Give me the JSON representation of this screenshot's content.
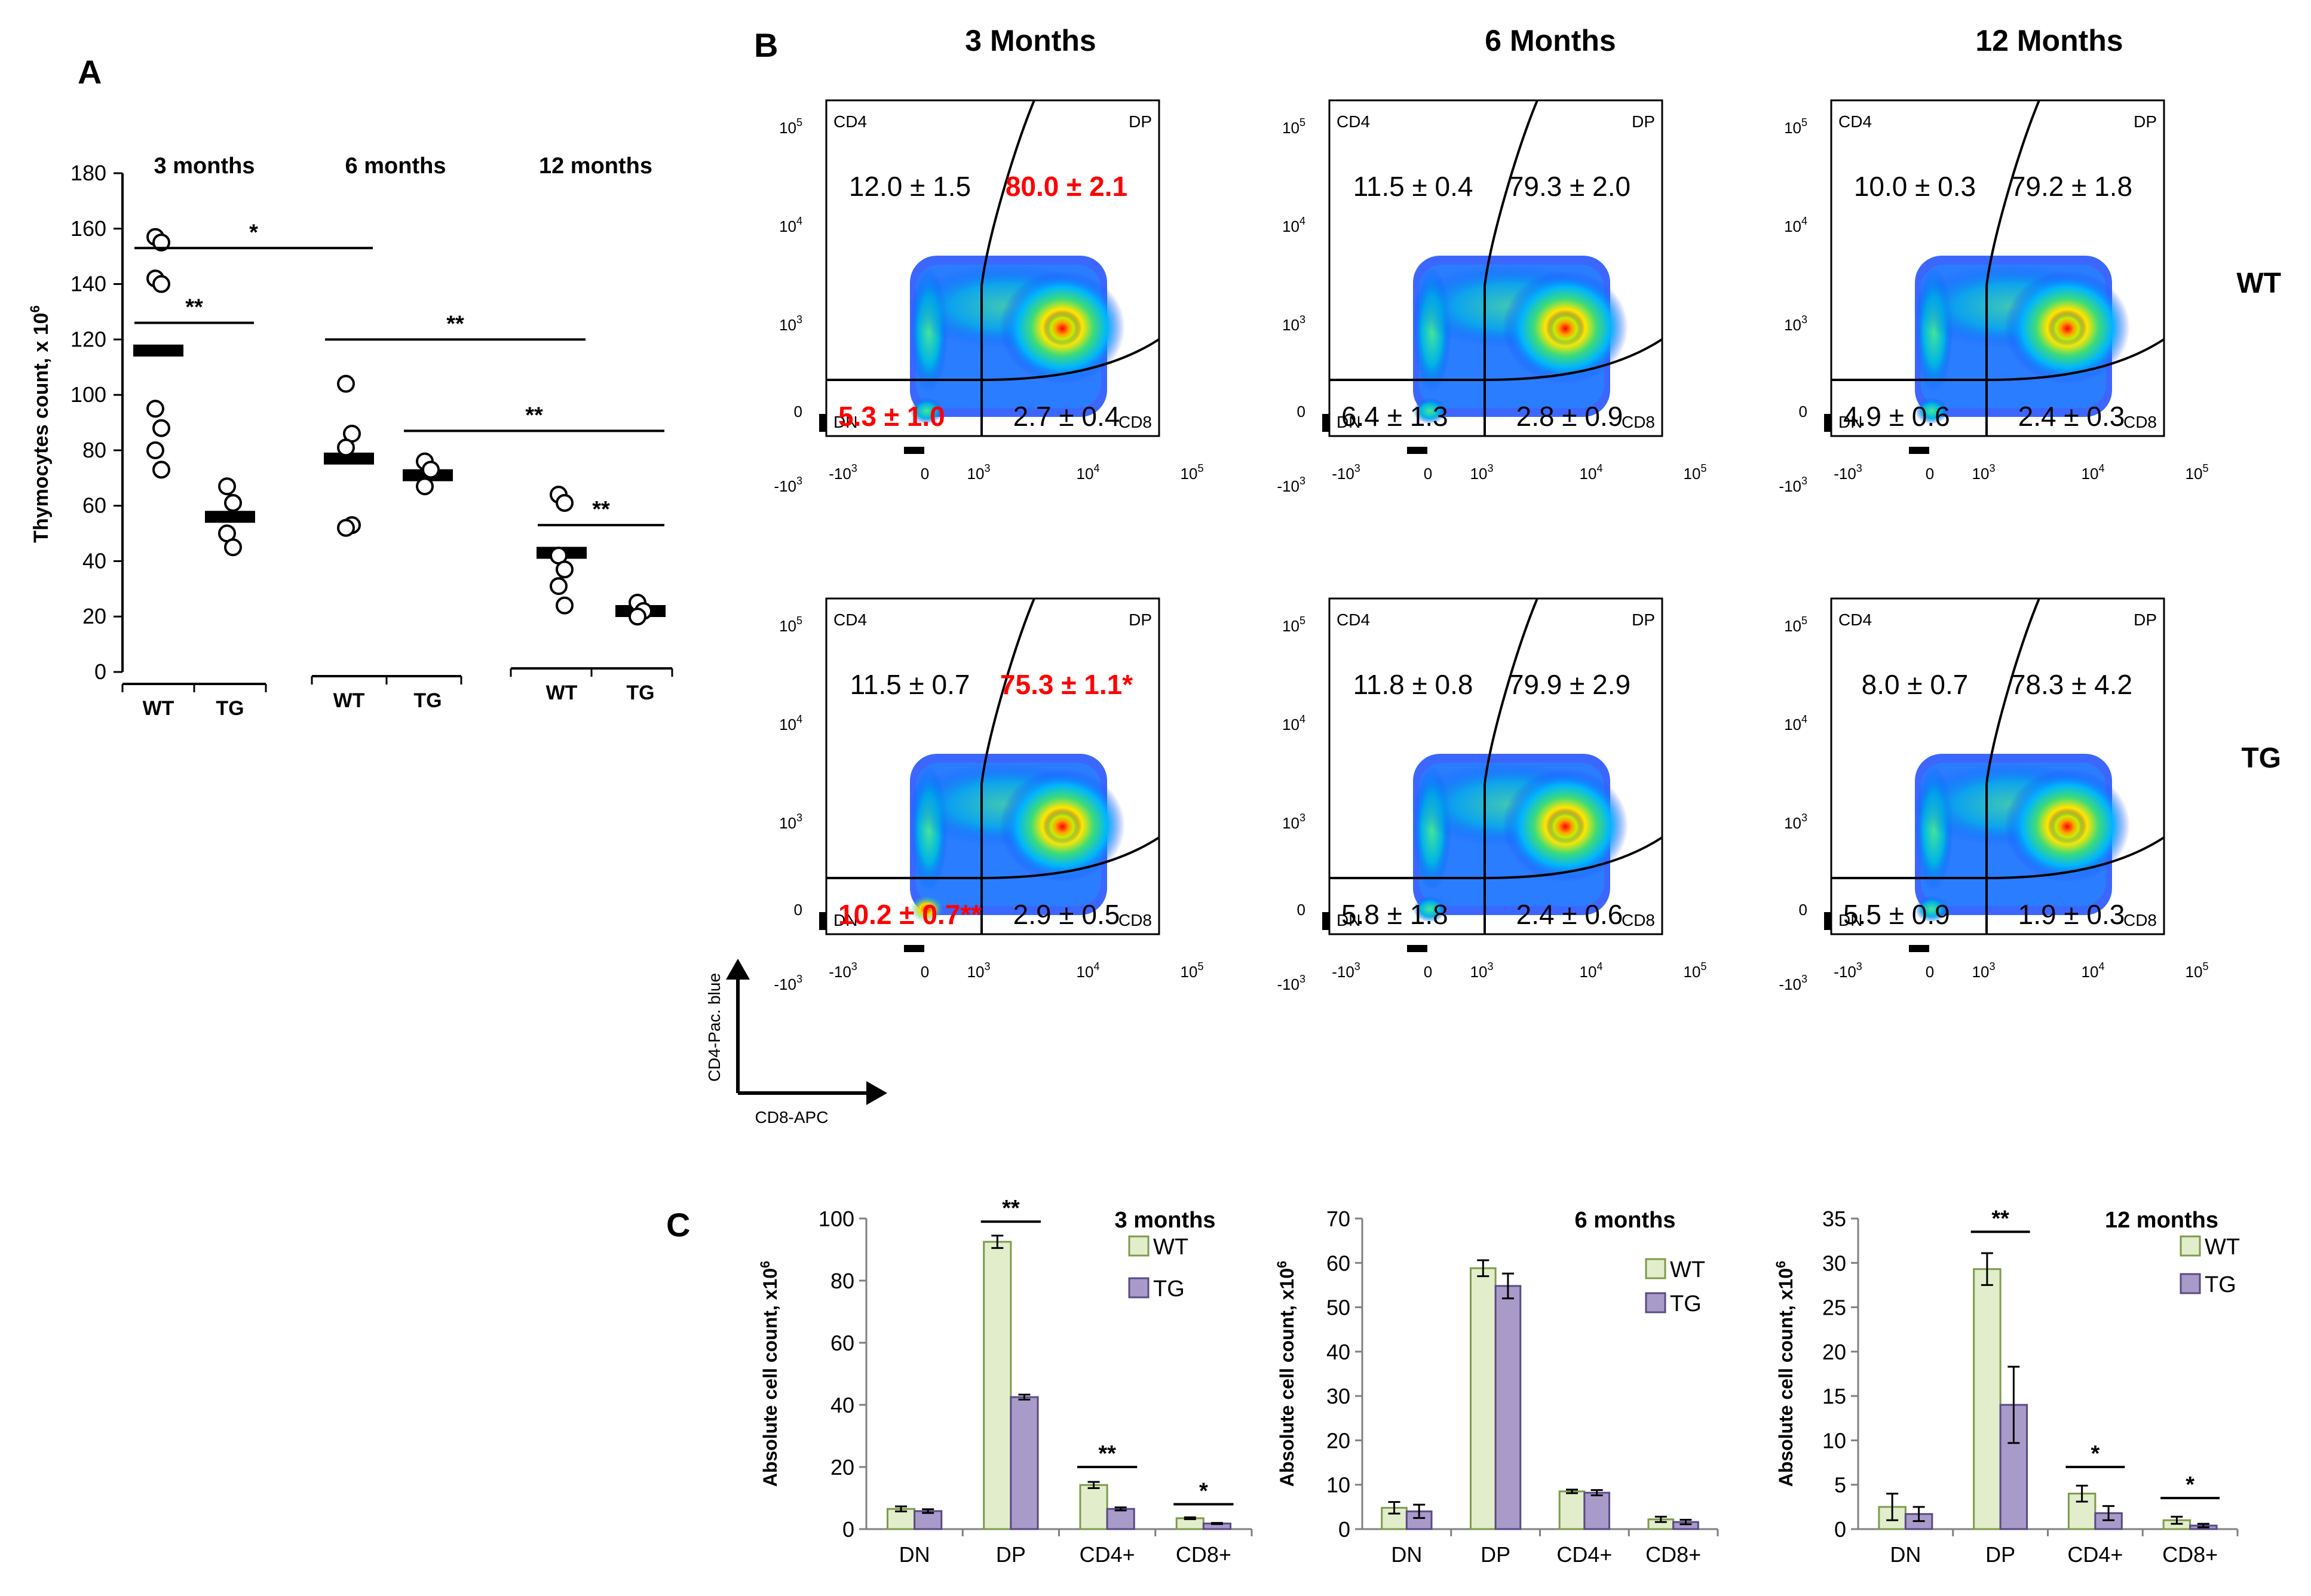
{
  "panel_letters": {
    "a": "A",
    "b": "B",
    "c": "C"
  },
  "colors": {
    "wt_fill": "#e2eecb",
    "wt_stroke": "#7f9a4c",
    "tg_fill": "#a99bc9",
    "tg_stroke": "#5a4a85",
    "highlight": "#ff0000",
    "text": "#000000"
  },
  "panel_b": {
    "col_titles": [
      "3 Months",
      "6 Months",
      "12 Months"
    ],
    "row_labels": [
      "WT",
      "TG"
    ],
    "quadrant_labels": {
      "tl": "CD4",
      "tr": "DP",
      "bl": "DN",
      "br": "CD8"
    },
    "y_ticks": [
      "10",
      "10",
      "10",
      "0",
      "-10"
    ],
    "y_exps": [
      "5",
      "4",
      "3",
      "",
      "3"
    ],
    "x_ticks": [
      "-10",
      "0",
      "10",
      "10",
      "10"
    ],
    "x_exps": [
      "3",
      "",
      "3",
      "4",
      "5"
    ],
    "axis_y_label": "CD4-Pac. blue",
    "axis_x_label": "CD8-APC",
    "plots": [
      {
        "cd4": "12.0 ± 1.5",
        "dp": "80.0 ± 2.1",
        "dn": "5.3 ± 1.0",
        "cd8": "2.7 ± 0.4",
        "red": [
          "dp",
          "dn"
        ]
      },
      {
        "cd4": "11.5 ± 0.4",
        "dp": "79.3 ± 2.0",
        "dn": "6.4 ± 1.3",
        "cd8": "2.8 ± 0.9",
        "red": []
      },
      {
        "cd4": "10.0 ± 0.3",
        "dp": "79.2 ± 1.8",
        "dn": "4.9 ± 0.6",
        "cd8": "2.4 ± 0.3",
        "red": []
      },
      {
        "cd4": "11.5 ± 0.7",
        "dp": "75.3 ± 1.1*",
        "dn": "10.2 ± 0.7**",
        "cd8": "2.9 ± 0.5",
        "red": [
          "dp",
          "dn"
        ]
      },
      {
        "cd4": "11.8 ± 0.8",
        "dp": "79.9 ± 2.9",
        "dn": "5.8 ± 1.8",
        "cd8": "2.4 ± 0.6",
        "red": []
      },
      {
        "cd4": "8.0 ± 0.7",
        "dp": "78.3 ± 4.2",
        "dn": "5.5 ± 0.9",
        "cd8": "1.9 ± 0.3",
        "red": []
      }
    ]
  },
  "chart_data": [
    {
      "id": "A",
      "type": "scatter",
      "ylabel": "Thymocytes count, x 10",
      "ylabel_exp": "6",
      "ylim": [
        0,
        180
      ],
      "yticks": [
        0,
        20,
        40,
        60,
        80,
        100,
        120,
        140,
        160,
        180
      ],
      "groups": [
        {
          "title": "3 months",
          "categories": [
            "WT",
            "TG"
          ],
          "points": [
            [
              157,
              155,
              142,
              140,
              95,
              88,
              80,
              73
            ],
            [
              67,
              61,
              50,
              45
            ]
          ],
          "means": [
            116,
            56
          ]
        },
        {
          "title": "6 months",
          "categories": [
            "WT",
            "TG"
          ],
          "points": [
            [
              104,
              86,
              81,
              53,
              52
            ],
            [
              76,
              73,
              67
            ]
          ],
          "means": [
            77,
            71
          ]
        },
        {
          "title": "12 months",
          "categories": [
            "WT",
            "TG"
          ],
          "points": [
            [
              64,
              61,
              42,
              37,
              31,
              24
            ],
            [
              25,
              22,
              20
            ]
          ],
          "means": [
            43,
            22
          ]
        }
      ],
      "significance": [
        {
          "label": "*",
          "from": "3 months WT",
          "to": "6 months WT",
          "y": 153
        },
        {
          "label": "**",
          "from": "3 months WT",
          "to": "3 months TG",
          "y": 126
        },
        {
          "label": "**",
          "from": "6 months WT",
          "to": "12 months WT",
          "y": 120
        },
        {
          "label": "**",
          "from": "6 months TG",
          "to": "12 months TG",
          "y": 87
        },
        {
          "label": "**",
          "from": "12 months WT",
          "to": "12 months TG",
          "y": 53
        }
      ]
    },
    {
      "id": "C1",
      "type": "bar",
      "title": "3 months",
      "ylabel": "Absolute cell count, x10",
      "ylabel_exp": "6",
      "categories": [
        "DN",
        "DP",
        "CD4+",
        "CD8+"
      ],
      "ylim": [
        0,
        100
      ],
      "yticks": [
        0,
        20,
        40,
        60,
        80,
        100
      ],
      "series": [
        {
          "name": "WT",
          "values": [
            6.5,
            92.5,
            14.2,
            3.5
          ],
          "errors": [
            0.8,
            2.0,
            1.0,
            0.3
          ]
        },
        {
          "name": "TG",
          "values": [
            5.8,
            42.5,
            6.5,
            1.8
          ],
          "errors": [
            0.6,
            0.8,
            0.5,
            0.2
          ]
        }
      ],
      "significance": [
        {
          "label": "**",
          "category": "DP",
          "y": 99
        },
        {
          "label": "**",
          "category": "CD4+",
          "y": 20
        },
        {
          "label": "*",
          "category": "CD8+",
          "y": 8
        }
      ]
    },
    {
      "id": "C2",
      "type": "bar",
      "title": "6 months",
      "ylabel": "Absolute cell count, x10",
      "ylabel_exp": "6",
      "categories": [
        "DN",
        "DP",
        "CD4+",
        "CD8+"
      ],
      "ylim": [
        0,
        70
      ],
      "yticks": [
        0,
        10,
        20,
        30,
        40,
        50,
        60,
        70
      ],
      "series": [
        {
          "name": "WT",
          "values": [
            4.8,
            58.8,
            8.5,
            2.2
          ],
          "errors": [
            1.3,
            1.8,
            0.4,
            0.6
          ]
        },
        {
          "name": "TG",
          "values": [
            4.0,
            54.8,
            8.2,
            1.6
          ],
          "errors": [
            1.5,
            2.8,
            0.6,
            0.5
          ]
        }
      ],
      "significance": []
    },
    {
      "id": "C3",
      "type": "bar",
      "title": "12 months",
      "ylabel": "Absolute cell count, x10",
      "ylabel_exp": "6",
      "categories": [
        "DN",
        "DP",
        "CD4+",
        "CD8+"
      ],
      "ylim": [
        0,
        35
      ],
      "yticks": [
        0,
        5,
        10,
        15,
        20,
        25,
        30,
        35
      ],
      "series": [
        {
          "name": "WT",
          "values": [
            2.5,
            29.3,
            4.0,
            1.0
          ],
          "errors": [
            1.5,
            1.8,
            0.9,
            0.4
          ]
        },
        {
          "name": "TG",
          "values": [
            1.7,
            14.0,
            1.8,
            0.4
          ],
          "errors": [
            0.8,
            4.3,
            0.8,
            0.2
          ]
        }
      ],
      "significance": [
        {
          "label": "**",
          "category": "DP",
          "y": 33.5
        },
        {
          "label": "*",
          "category": "CD4+",
          "y": 7
        },
        {
          "label": "*",
          "category": "CD8+",
          "y": 3.5
        }
      ]
    }
  ]
}
